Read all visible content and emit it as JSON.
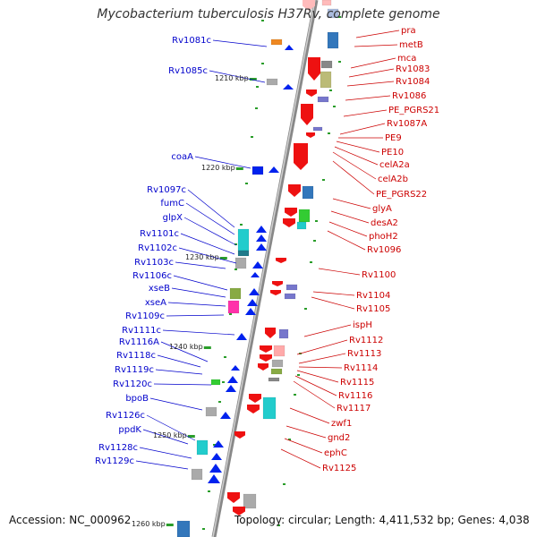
{
  "title": "Mycobacterium tuberculosis H37Rv, complete genome",
  "footer": {
    "accession": "Accession: NC_000962",
    "topology": "Topology: circular; Length: 4,411,532 bp; Genes: 4,038"
  },
  "colors": {
    "left_label": "#0000cc",
    "right_label": "#cc0000",
    "backbone": "#999999",
    "tick": "#2a9d2a",
    "forward_gene": "#0022ee",
    "reverse_gene": "#ee1111"
  },
  "kbp_ticks": [
    "1210 kbp",
    "1220 kbp",
    "1230 kbp",
    "1240 kbp",
    "1250 kbp",
    "1260 kbp"
  ],
  "left_labels": [
    "Rv1081c",
    "Rv1085c",
    "coaA",
    "Rv1097c",
    "fumC",
    "glpX",
    "Rv1101c",
    "Rv1102c",
    "Rv1103c",
    "Rv1106c",
    "xseB",
    "xseA",
    "Rv1109c",
    "Rv1111c",
    "Rv1116A",
    "Rv1118c",
    "Rv1119c",
    "Rv1120c",
    "bpoB",
    "Rv1126c",
    "ppdK",
    "Rv1128c",
    "Rv1129c"
  ],
  "right_labels": [
    "pra",
    "metB",
    "mca",
    "Rv1083",
    "Rv1084",
    "Rv1086",
    "PE_PGRS21",
    "Rv1087A",
    "PE9",
    "PE10",
    "celA2a",
    "celA2b",
    "PE_PGRS22",
    "glyA",
    "desA2",
    "phoH2",
    "Rv1096",
    "Rv1100",
    "Rv1104",
    "Rv1105",
    "ispH",
    "Rv1112",
    "Rv1113",
    "Rv1114",
    "Rv1115",
    "Rv1116",
    "Rv1117",
    "zwf1",
    "gnd2",
    "ephC",
    "Rv1125"
  ]
}
